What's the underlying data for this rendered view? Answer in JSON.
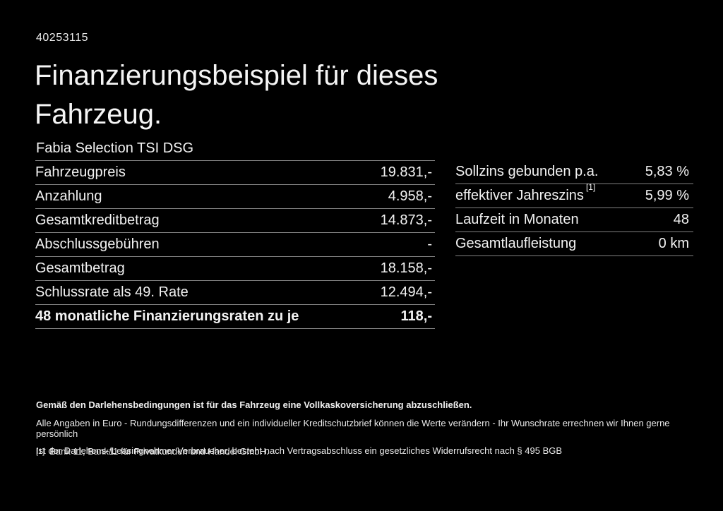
{
  "page": {
    "id_number": "40253115",
    "title": "Finanzierungsbeispiel für dieses\nFahrzeug.",
    "vehicle_model": "Fabia Selection TSI DSG"
  },
  "finance_table": {
    "rows": [
      {
        "label": "Fahrzeugpreis",
        "value": "19.831,-"
      },
      {
        "label": "Anzahlung",
        "value": "4.958,-"
      },
      {
        "label": "Gesamtkreditbetrag",
        "value": "14.873,-"
      },
      {
        "label": "Abschlussgebühren",
        "value": "-"
      },
      {
        "label": "Gesamtbetrag",
        "value": "18.158,-"
      },
      {
        "label": "Schlussrate als 49. Rate",
        "value": "12.494,-"
      },
      {
        "label": "48 monatliche Finanzierungsraten zu je",
        "value": "118,-",
        "bold": true
      }
    ]
  },
  "conditions_table": {
    "rows": [
      {
        "label": "Sollzins gebunden p.a.",
        "sup": "",
        "value": "5,83 %"
      },
      {
        "label": "effektiver Jahreszins",
        "sup": "[1]",
        "value": "5,99 %"
      },
      {
        "label": "Laufzeit in Monaten",
        "sup": "",
        "value": "48"
      },
      {
        "label": "Gesamtlaufleistung",
        "sup": "",
        "value": "0 km"
      }
    ]
  },
  "footer": {
    "insurance_note": "Gemäß den Darlehensbedingungen ist für das Fahrzeug eine Vollkaskoversicherung abzuschließen.",
    "disclaimer_line1": "Alle Angaben in Euro - Rundungsdifferenzen und ein individueller Kreditschutzbrief können die Werte verändern - Ihr Wunschrate errechnen wir Ihnen gerne persönlich",
    "disclaimer_line2": "Ist der Darlehens-/Leasingnehmer Verbraucher, besteht nach Vertragsabschluss ein gesetzliches Widerrufsrecht nach § 495 BGB",
    "footnote_marker": "[1]",
    "footnote_text": "Bank 11, Bank11 für Privatkunden und Handel GmbH."
  },
  "colors": {
    "background": "#000000",
    "text": "#f2f2f2",
    "divider": "#828282"
  }
}
